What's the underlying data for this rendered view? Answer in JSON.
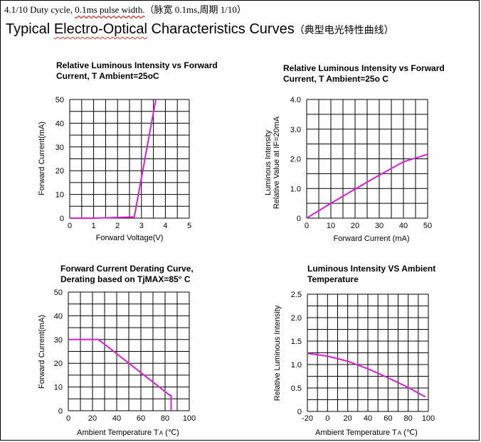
{
  "header": {
    "note_prefix": "4.1/10 Duty cycle, ",
    "note_squiggle": "0.1ms pulse width.",
    "note_suffix": "（脉宽 0.1ms,周期 1/10）",
    "title_prefix": "Typical ",
    "title_underlined": "Electro-Optical",
    "title_suffix": " Characteristics Curves",
    "title_cn": "（典型电光特性曲线）"
  },
  "colors": {
    "curve": "#d81ed8",
    "grid": "#000000"
  },
  "chart_data": [
    {
      "type": "line",
      "title_line1": "Relative Luminous Intensity vs Forward",
      "title_line2": "Current, T Ambient=25oC",
      "xlabel": "Forward Voltage(V)",
      "ylabel": "Forward Current(mA)",
      "xlim": [
        0,
        5
      ],
      "ylim": [
        0,
        50
      ],
      "x_ticks": [
        "0",
        "1",
        "2",
        "3",
        "4",
        "5"
      ],
      "y_ticks": [
        "0",
        "10",
        "20",
        "30",
        "40",
        "50"
      ],
      "grid": true,
      "series": [
        {
          "x": [
            0,
            1.0,
            1.8,
            2.7,
            3.6
          ],
          "y": [
            0,
            0,
            0.2,
            0.5,
            50
          ]
        }
      ]
    },
    {
      "type": "line",
      "title_line1": "Relative Luminous Intensity vs Forward",
      "title_line2": "Current, T Ambient=25o C",
      "xlabel": "Forward Current (mA)",
      "ylabel_line1": "Luminous Intensity",
      "ylabel_line2": "Relative Value at IF=20mA",
      "xlim": [
        0,
        50
      ],
      "ylim": [
        0,
        4
      ],
      "x_ticks": [
        "0",
        "10",
        "20",
        "30",
        "40",
        "50"
      ],
      "y_ticks": [
        "0",
        "1.0",
        "2.0",
        "3.0",
        "4.0"
      ],
      "grid": true,
      "series": [
        {
          "x": [
            0,
            10,
            20,
            30,
            40,
            50
          ],
          "y": [
            0,
            0.5,
            0.98,
            1.45,
            1.9,
            2.15
          ]
        }
      ]
    },
    {
      "type": "line",
      "title_line1": "Forward Current Derating Curve,",
      "title_line2": "Derating based on TjMAX=85° C",
      "xlabel_prefix": "Ambient Temperature T",
      "xlabel_sub": "A",
      "xlabel_suffix": " (℃)",
      "ylabel": "Forward Current(mA)",
      "xlim": [
        0,
        100
      ],
      "ylim": [
        0,
        50
      ],
      "x_ticks": [
        "0",
        "20",
        "40",
        "60",
        "80",
        "100"
      ],
      "y_ticks": [
        "0",
        "10",
        "20",
        "30",
        "40",
        "50"
      ],
      "grid": true,
      "series": [
        {
          "x": [
            0,
            25,
            84,
            85,
            85
          ],
          "y": [
            30,
            30,
            6.5,
            6.5,
            0
          ]
        }
      ]
    },
    {
      "type": "line",
      "title_line1": "Luminous Intensity VS Ambient",
      "title_line2": "Temperature",
      "xlabel_prefix": "Ambient Temperature T",
      "xlabel_sub": "A",
      "xlabel_suffix": " (℃)",
      "ylabel": "Relative Luminous Intensity",
      "xlim": [
        -20,
        100
      ],
      "ylim": [
        0,
        2.5
      ],
      "x_ticks": [
        "-20",
        "0",
        "20",
        "40",
        "60",
        "80",
        "100"
      ],
      "y_ticks": [
        "0",
        "0.5",
        "1.0",
        "1.5",
        "2.0",
        "2.5"
      ],
      "grid": true,
      "series": [
        {
          "x": [
            -20,
            0,
            20,
            40,
            60,
            80,
            97
          ],
          "y": [
            1.24,
            1.18,
            1.07,
            0.91,
            0.72,
            0.51,
            0.31
          ]
        }
      ]
    }
  ]
}
